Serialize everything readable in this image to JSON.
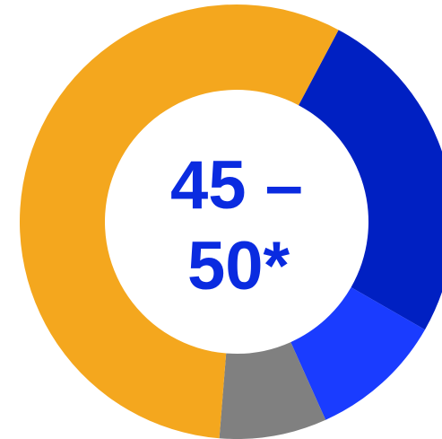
{
  "chart_data": {
    "type": "pie",
    "style": "donut",
    "slices": [
      {
        "value": 25.5,
        "color": "#0020c2"
      },
      {
        "value": 10.0,
        "color": "#1a3cff"
      },
      {
        "value": 8.0,
        "color": "#808080"
      },
      {
        "value": 56.5,
        "color": "#f4a71e"
      }
    ],
    "center_label": {
      "line1": "45 –",
      "line2": "50*",
      "color": "#0a2be0"
    },
    "background": "#ffffff",
    "legend": "none"
  }
}
